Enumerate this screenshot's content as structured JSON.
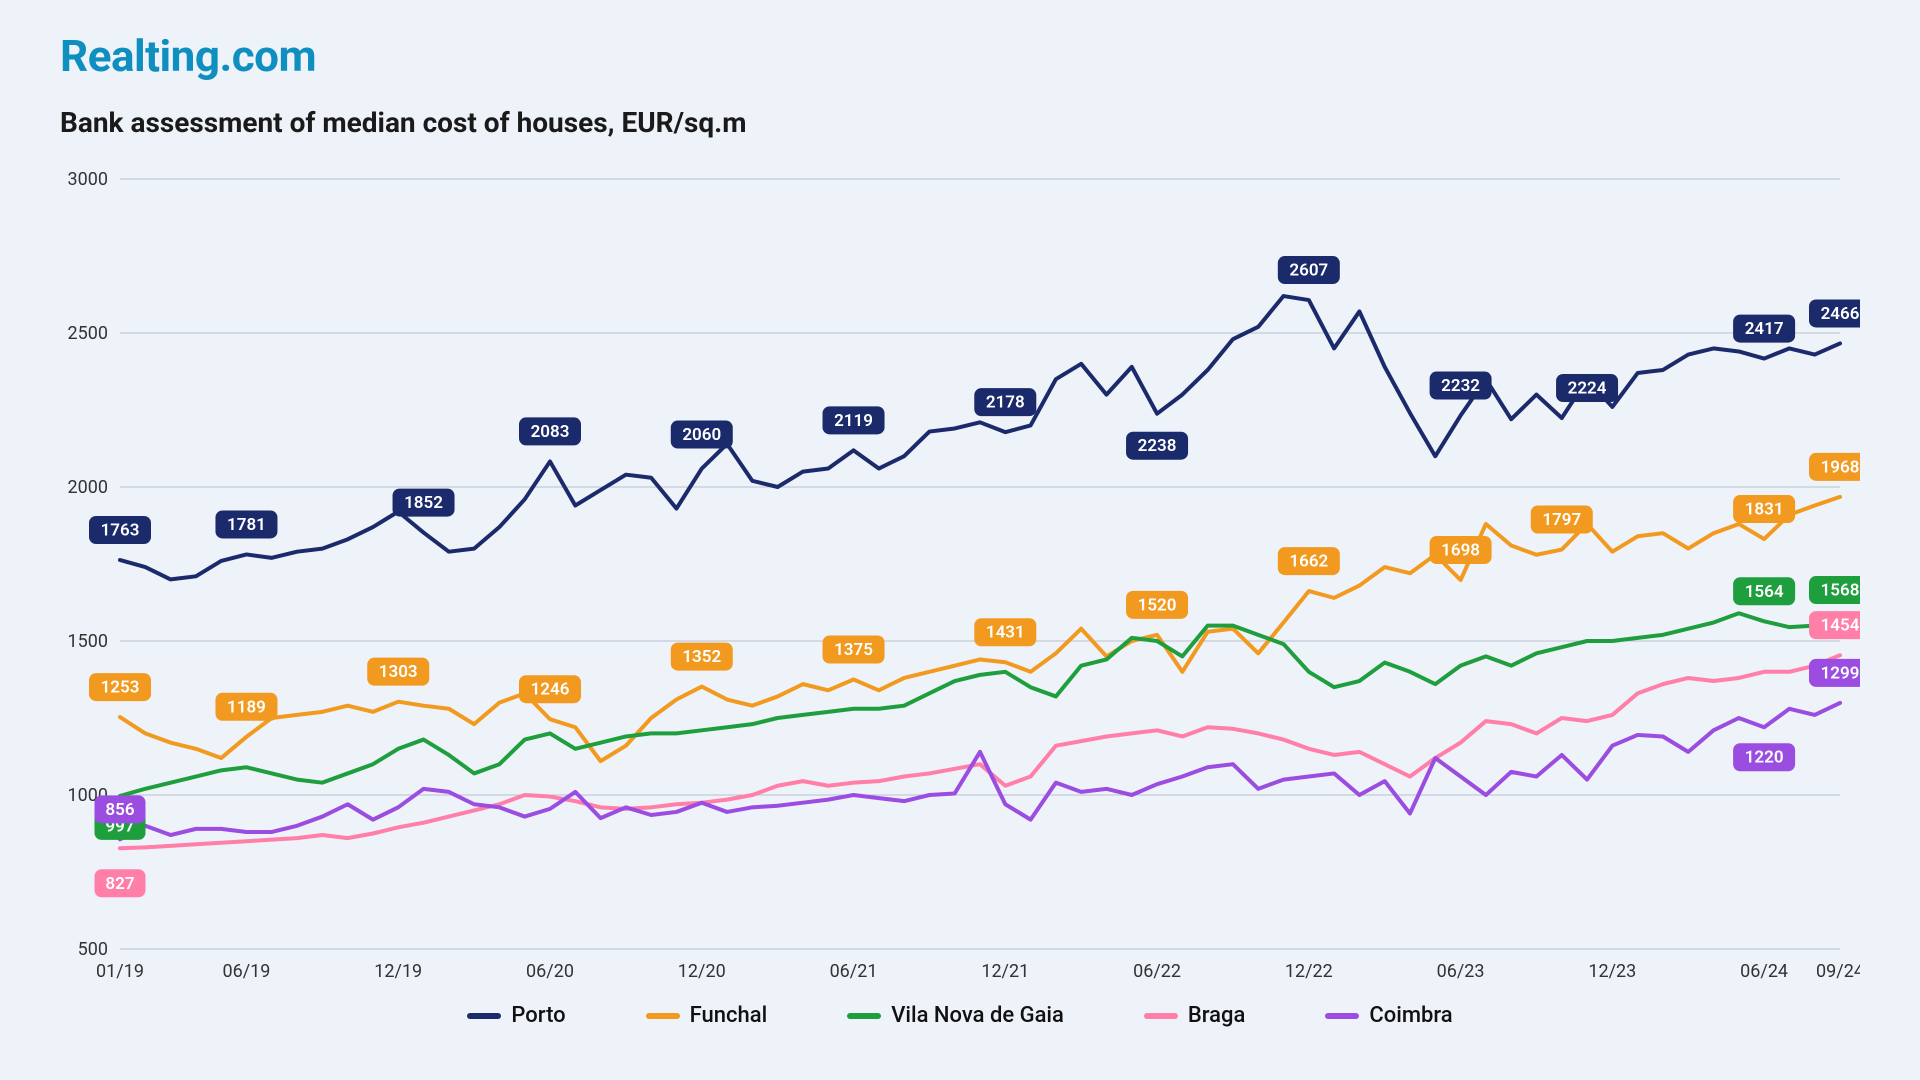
{
  "brand": "Realting.com",
  "chart": {
    "type": "line",
    "title": "Bank assessment of median cost of houses, EUR/sq.m",
    "background_color": "#eef2f9",
    "grid_color": "#b8c2d4",
    "ylim": [
      500,
      3000
    ],
    "ytick_step": 500,
    "yticks": [
      500,
      1000,
      1500,
      2000,
      2500,
      3000
    ],
    "x_labels": [
      "01/19",
      "06/19",
      "12/19",
      "06/20",
      "12/20",
      "06/21",
      "12/21",
      "06/22",
      "12/22",
      "06/23",
      "12/23",
      "06/24",
      "09/24"
    ],
    "x_ticks_at": [
      0,
      5,
      11,
      17,
      23,
      29,
      35,
      41,
      47,
      53,
      59,
      65,
      68
    ],
    "n_points": 69,
    "line_width": 4,
    "axis_fontsize": 18,
    "legend_fontsize": 22,
    "series": [
      {
        "name": "Porto",
        "color": "#1b2a6b",
        "values": [
          1763,
          1740,
          1700,
          1710,
          1760,
          1781,
          1770,
          1790,
          1800,
          1830,
          1870,
          1920,
          1852,
          1790,
          1800,
          1870,
          1960,
          2083,
          1940,
          1990,
          2040,
          2030,
          1930,
          2060,
          2140,
          2020,
          2000,
          2050,
          2060,
          2119,
          2060,
          2100,
          2180,
          2190,
          2210,
          2178,
          2200,
          2350,
          2400,
          2300,
          2390,
          2238,
          2300,
          2380,
          2480,
          2520,
          2620,
          2607,
          2450,
          2570,
          2390,
          2240,
          2100,
          2232,
          2350,
          2220,
          2300,
          2224,
          2350,
          2260,
          2370,
          2380,
          2430,
          2450,
          2440,
          2417,
          2450,
          2430,
          2466
        ],
        "labels": [
          {
            "i": 0,
            "v": 1763,
            "dy": -30
          },
          {
            "i": 5,
            "v": 1781,
            "dy": -30
          },
          {
            "i": 12,
            "v": 1852,
            "dy": -30
          },
          {
            "i": 17,
            "v": 2083,
            "dy": -30
          },
          {
            "i": 23,
            "v": 2060,
            "dy": -34
          },
          {
            "i": 29,
            "v": 2119,
            "dy": -30
          },
          {
            "i": 35,
            "v": 2178,
            "dy": -30
          },
          {
            "i": 41,
            "v": 2238,
            "dy": 32
          },
          {
            "i": 47,
            "v": 2607,
            "dy": -30
          },
          {
            "i": 53,
            "v": 2232,
            "dy": -30
          },
          {
            "i": 58,
            "v": 2224,
            "dy": -30
          },
          {
            "i": 65,
            "v": 2417,
            "dy": -30
          },
          {
            "i": 68,
            "v": 2466,
            "dy": -30
          }
        ]
      },
      {
        "name": "Funchal",
        "color": "#f29a1f",
        "values": [
          1253,
          1200,
          1170,
          1150,
          1120,
          1189,
          1250,
          1260,
          1270,
          1290,
          1270,
          1303,
          1290,
          1280,
          1230,
          1300,
          1330,
          1246,
          1220,
          1110,
          1160,
          1250,
          1310,
          1352,
          1310,
          1290,
          1320,
          1360,
          1340,
          1375,
          1340,
          1380,
          1400,
          1420,
          1440,
          1431,
          1400,
          1460,
          1540,
          1450,
          1500,
          1520,
          1400,
          1530,
          1540,
          1460,
          1560,
          1662,
          1640,
          1680,
          1740,
          1720,
          1780,
          1698,
          1880,
          1810,
          1780,
          1797,
          1880,
          1790,
          1840,
          1850,
          1800,
          1850,
          1880,
          1831,
          1910,
          1940,
          1968
        ],
        "labels": [
          {
            "i": 0,
            "v": 1253,
            "dy": -30
          },
          {
            "i": 5,
            "v": 1189,
            "dy": -30
          },
          {
            "i": 11,
            "v": 1303,
            "dy": -30
          },
          {
            "i": 17,
            "v": 1246,
            "dy": -30
          },
          {
            "i": 23,
            "v": 1352,
            "dy": -30
          },
          {
            "i": 29,
            "v": 1375,
            "dy": -30
          },
          {
            "i": 35,
            "v": 1431,
            "dy": -30
          },
          {
            "i": 41,
            "v": 1520,
            "dy": -30
          },
          {
            "i": 47,
            "v": 1662,
            "dy": -30
          },
          {
            "i": 53,
            "v": 1698,
            "dy": -30
          },
          {
            "i": 57,
            "v": 1797,
            "dy": -30
          },
          {
            "i": 65,
            "v": 1831,
            "dy": -30
          },
          {
            "i": 68,
            "v": 1968,
            "dy": -30
          }
        ]
      },
      {
        "name": "Vila Nova de Gaia",
        "color": "#1f9e3e",
        "values": [
          997,
          1020,
          1040,
          1060,
          1080,
          1090,
          1070,
          1050,
          1040,
          1070,
          1100,
          1150,
          1180,
          1130,
          1070,
          1100,
          1180,
          1200,
          1150,
          1170,
          1190,
          1200,
          1200,
          1210,
          1220,
          1230,
          1250,
          1260,
          1270,
          1280,
          1280,
          1290,
          1330,
          1370,
          1390,
          1400,
          1350,
          1320,
          1420,
          1440,
          1510,
          1500,
          1450,
          1550,
          1550,
          1520,
          1490,
          1400,
          1350,
          1370,
          1430,
          1400,
          1360,
          1420,
          1450,
          1420,
          1460,
          1480,
          1500,
          1500,
          1510,
          1520,
          1540,
          1560,
          1590,
          1564,
          1545,
          1550,
          1568
        ],
        "labels": [
          {
            "i": 0,
            "v": 997,
            "dy": 30
          },
          {
            "i": 65,
            "v": 1564,
            "dy": -30
          },
          {
            "i": 68,
            "v": 1568,
            "dy": -30
          }
        ]
      },
      {
        "name": "Braga",
        "color": "#ff7fa8",
        "values": [
          827,
          830,
          835,
          840,
          845,
          850,
          855,
          860,
          870,
          860,
          875,
          895,
          910,
          930,
          950,
          970,
          1000,
          995,
          980,
          960,
          955,
          960,
          970,
          975,
          985,
          1000,
          1030,
          1045,
          1030,
          1040,
          1045,
          1060,
          1070,
          1085,
          1100,
          1030,
          1060,
          1160,
          1175,
          1190,
          1200,
          1210,
          1190,
          1220,
          1215,
          1200,
          1180,
          1150,
          1130,
          1140,
          1100,
          1060,
          1120,
          1170,
          1240,
          1230,
          1200,
          1250,
          1240,
          1260,
          1330,
          1360,
          1380,
          1370,
          1380,
          1400,
          1400,
          1420,
          1454
        ],
        "labels": [
          {
            "i": 0,
            "v": 827,
            "dy": 35
          },
          {
            "i": 68,
            "v": 1454,
            "dy": -30
          }
        ]
      },
      {
        "name": "Coimbra",
        "color": "#9a4de0",
        "values": [
          856,
          900,
          870,
          890,
          890,
          880,
          880,
          900,
          930,
          970,
          920,
          960,
          1020,
          1010,
          970,
          960,
          930,
          955,
          1010,
          925,
          960,
          935,
          945,
          975,
          945,
          960,
          965,
          975,
          985,
          1000,
          990,
          980,
          1000,
          1005,
          1140,
          970,
          920,
          1040,
          1010,
          1020,
          1000,
          1035,
          1060,
          1090,
          1100,
          1020,
          1050,
          1060,
          1070,
          1000,
          1045,
          940,
          1120,
          1060,
          1000,
          1075,
          1060,
          1130,
          1050,
          1160,
          1195,
          1190,
          1140,
          1210,
          1250,
          1220,
          1280,
          1260,
          1299
        ],
        "labels": [
          {
            "i": 0,
            "v": 856,
            "dy": -30
          },
          {
            "i": 65,
            "v": 1220,
            "dy": 30
          },
          {
            "i": 68,
            "v": 1299,
            "dy": -30
          }
        ]
      }
    ]
  }
}
